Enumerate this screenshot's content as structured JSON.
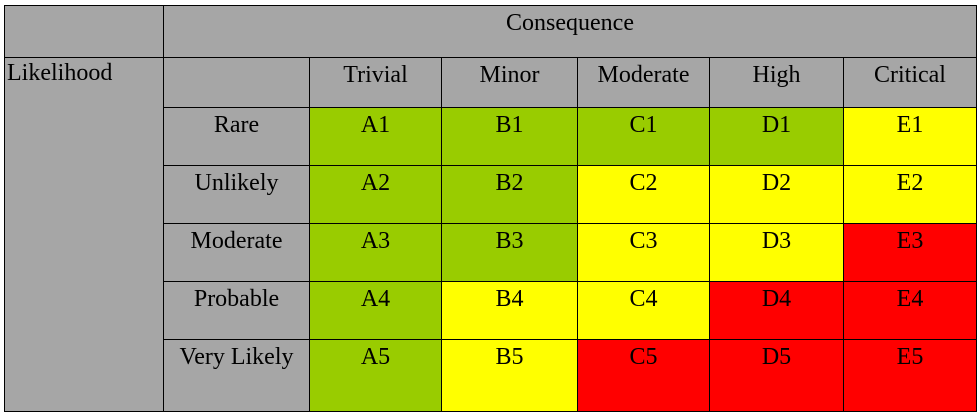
{
  "corner_label": "",
  "consequence_label": "Consequence",
  "likelihood_label": "Likelihood",
  "consequence_levels": [
    "Trivial",
    "Minor",
    "Moderate",
    "High",
    "Critical"
  ],
  "likelihood_levels": [
    "Rare",
    "Unlikely",
    "Moderate",
    "Probable",
    "Very Likely"
  ],
  "colors": {
    "header": "#a6a6a6",
    "green": "#99cc00",
    "yellow": "#ffff00",
    "red": "#ff0000"
  },
  "rows": [
    {
      "cells": [
        {
          "code": "A1",
          "level": "green"
        },
        {
          "code": "B1",
          "level": "green"
        },
        {
          "code": "C1",
          "level": "green"
        },
        {
          "code": "D1",
          "level": "green"
        },
        {
          "code": "E1",
          "level": "yellow"
        }
      ]
    },
    {
      "cells": [
        {
          "code": "A2",
          "level": "green"
        },
        {
          "code": "B2",
          "level": "green"
        },
        {
          "code": "C2",
          "level": "yellow"
        },
        {
          "code": "D2",
          "level": "yellow"
        },
        {
          "code": "E2",
          "level": "yellow"
        }
      ]
    },
    {
      "cells": [
        {
          "code": "A3",
          "level": "green"
        },
        {
          "code": "B3",
          "level": "green"
        },
        {
          "code": "C3",
          "level": "yellow"
        },
        {
          "code": "D3",
          "level": "yellow"
        },
        {
          "code": "E3",
          "level": "red"
        }
      ]
    },
    {
      "cells": [
        {
          "code": "A4",
          "level": "green"
        },
        {
          "code": "B4",
          "level": "yellow"
        },
        {
          "code": "C4",
          "level": "yellow"
        },
        {
          "code": "D4",
          "level": "red"
        },
        {
          "code": "E4",
          "level": "red"
        }
      ]
    },
    {
      "cells": [
        {
          "code": "A5",
          "level": "green"
        },
        {
          "code": "B5",
          "level": "yellow"
        },
        {
          "code": "C5",
          "level": "red"
        },
        {
          "code": "D5",
          "level": "red"
        },
        {
          "code": "E5",
          "level": "red"
        }
      ]
    }
  ]
}
